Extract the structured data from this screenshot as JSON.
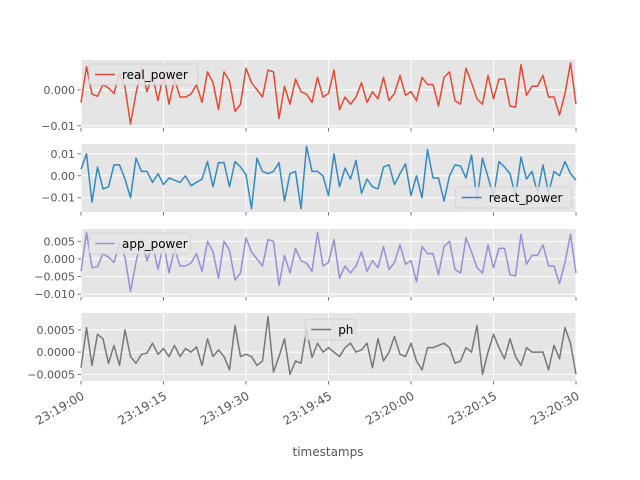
{
  "chart_data": {
    "type": "line",
    "xlabel": "timestamps",
    "x_tick_labels": [
      "23:19:00",
      "23:19:15",
      "23:19:30",
      "23:19:45",
      "23:20:00",
      "23:20:15",
      "23:20:30"
    ],
    "x_range_seconds": [
      0,
      90
    ],
    "n_points": 91,
    "grid": true,
    "shared_x": true,
    "panels": [
      {
        "name": "real_power",
        "color": "#E24A33",
        "legend_loc": "upper left",
        "ylim": [
          -0.0106,
          0.0083
        ],
        "yticks": [
          0.0,
          -0.01
        ],
        "ytick_labels": [
          "0.000",
          "−0.01"
        ],
        "values": [
          -0.0035,
          0.0065,
          -0.0012,
          -0.0018,
          0.0015,
          0.0005,
          -0.001,
          0.0045,
          0.0008,
          -0.0095,
          -0.001,
          0.006,
          -0.0005,
          0.004,
          -0.003,
          0.0045,
          -0.004,
          0.003,
          -0.002,
          -0.002,
          -0.0012,
          0.0015,
          -0.0035,
          0.005,
          0.002,
          -0.0055,
          0.005,
          0.0025,
          -0.006,
          -0.004,
          0.006,
          0.002,
          0.0,
          -0.002,
          0.0055,
          0.005,
          -0.008,
          0.001,
          -0.004,
          0.003,
          -0.0005,
          -0.0012,
          -0.0035,
          0.0035,
          -0.002,
          -0.001,
          0.0055,
          -0.0055,
          -0.002,
          -0.004,
          -0.002,
          0.002,
          -0.0035,
          -0.0005,
          -0.0025,
          0.0035,
          -0.003,
          -0.001,
          0.004,
          -0.0015,
          -0.0005,
          -0.003,
          0.0035,
          0.0015,
          0.0015,
          -0.0045,
          0.0035,
          0.005,
          -0.003,
          -0.004,
          0.006,
          0.002,
          -0.0025,
          -0.004,
          0.004,
          -0.0025,
          0.003,
          0.003,
          -0.0045,
          -0.0048,
          0.007,
          -0.0015,
          0.001,
          0.001,
          0.004,
          -0.002,
          -0.002,
          -0.007,
          -0.001,
          0.0075,
          -0.004
        ]
      },
      {
        "name": "react_power",
        "color": "#348ABD",
        "legend_loc": "lower right",
        "ylim": [
          -0.0165,
          0.0145
        ],
        "yticks": [
          0.01,
          0.0,
          -0.01
        ],
        "ytick_labels": [
          "0.01",
          "0.00",
          "−0.01"
        ],
        "values": [
          0.003,
          0.01,
          -0.012,
          0.004,
          -0.006,
          -0.005,
          0.005,
          0.005,
          -0.0015,
          -0.01,
          0.008,
          0.002,
          0.002,
          -0.003,
          0.001,
          -0.004,
          -0.001,
          -0.002,
          -0.003,
          0.0,
          -0.0045,
          -0.003,
          -0.0015,
          0.0065,
          -0.005,
          0.006,
          0.006,
          -0.005,
          0.0065,
          0.004,
          0.0005,
          -0.015,
          0.008,
          0.002,
          0.001,
          0.002,
          0.006,
          -0.0115,
          0.001,
          0.002,
          -0.015,
          0.0135,
          0.002,
          0.002,
          0.0,
          -0.009,
          0.01,
          -0.005,
          0.0035,
          -0.0015,
          0.007,
          -0.008,
          -0.0015,
          -0.005,
          -0.006,
          0.004,
          0.005,
          -0.004,
          0.001,
          0.0055,
          -0.009,
          0.0,
          -0.01,
          0.012,
          -0.001,
          -0.001,
          -0.0115,
          0.0,
          0.005,
          0.0045,
          -0.001,
          0.0095,
          -0.011,
          0.008,
          -0.0005,
          -0.0095,
          0.0065,
          0.004,
          0.001,
          -0.0095,
          0.0085,
          -0.0015,
          0.002,
          -0.008,
          0.005,
          -0.008,
          0.002,
          0.0,
          0.0065,
          0.001,
          -0.002
        ]
      },
      {
        "name": "app_power",
        "color": "#988ED5",
        "legend_loc": "upper left",
        "ylim": [
          -0.0108,
          0.0085
        ],
        "yticks": [
          0.005,
          0.0,
          -0.005,
          -0.01
        ],
        "ytick_labels": [
          "0.005",
          "0.000",
          "−0.005",
          "−0.010"
        ],
        "values": [
          -0.0035,
          0.0075,
          -0.0025,
          -0.0022,
          0.0015,
          0.0005,
          -0.001,
          0.0045,
          0.0005,
          -0.0092,
          -0.001,
          0.006,
          -0.0005,
          0.004,
          -0.003,
          0.0045,
          -0.004,
          0.003,
          -0.002,
          -0.002,
          -0.0012,
          0.0015,
          -0.0035,
          0.005,
          0.002,
          -0.0055,
          0.005,
          0.0025,
          -0.006,
          -0.004,
          0.006,
          0.002,
          0.0,
          -0.002,
          0.0055,
          0.005,
          -0.0075,
          0.001,
          -0.004,
          0.003,
          -0.0005,
          -0.0012,
          -0.0035,
          0.0075,
          -0.002,
          -0.001,
          0.0055,
          -0.0055,
          -0.002,
          -0.004,
          -0.002,
          0.002,
          -0.0035,
          -0.0005,
          -0.0025,
          0.0035,
          -0.003,
          -0.001,
          0.004,
          -0.0015,
          -0.0005,
          -0.0065,
          0.0035,
          0.0015,
          0.0015,
          -0.0045,
          0.0035,
          0.005,
          -0.003,
          -0.004,
          0.006,
          0.002,
          -0.0025,
          -0.004,
          0.004,
          -0.0025,
          0.003,
          0.003,
          -0.0045,
          -0.0048,
          0.007,
          -0.0015,
          0.001,
          0.001,
          0.004,
          -0.002,
          -0.002,
          -0.007,
          -0.001,
          0.007,
          -0.004
        ]
      },
      {
        "name": "ph",
        "color": "#777777",
        "legend_loc": "upper center",
        "ylim": [
          -0.00065,
          0.00088
        ],
        "yticks": [
          0.0005,
          0.0,
          -0.0005
        ],
        "ytick_labels": [
          "0.0005",
          "0.0000",
          "−0.0005"
        ],
        "values": [
          -0.00035,
          0.00055,
          -0.0003,
          0.0004,
          0.0003,
          -0.00025,
          0.00015,
          -0.0003,
          0.0005,
          -0.0001,
          -0.00025,
          -5e-05,
          -2e-05,
          0.0002,
          -5e-05,
          8e-05,
          -0.0001,
          0.00015,
          -0.0001,
          8e-05,
          0.0,
          0.00012,
          -0.0003,
          0.0003,
          -0.0001,
          5e-05,
          -0.0001,
          -0.0004,
          0.0006,
          -0.0001,
          -5e-05,
          -0.0001,
          -0.0003,
          -0.0002,
          0.0008,
          -0.00045,
          -0.0001,
          0.0003,
          -0.0005,
          -0.0002,
          -0.00025,
          0.0005,
          -0.00012,
          0.0002,
          0.0,
          0.0001,
          0.0,
          -0.0001,
          0.0001,
          0.0002,
          0.0,
          5e-05,
          0.0002,
          -0.00035,
          0.0003,
          -0.0002,
          0.0,
          0.00035,
          -5e-05,
          -0.0001,
          0.0002,
          -0.0002,
          -0.0004,
          0.0001,
          0.0001,
          0.00015,
          0.0002,
          0.0001,
          -0.00025,
          -0.0002,
          0.0001,
          0.0,
          0.0006,
          -0.0005,
          0.0,
          0.0004,
          0.0001,
          -0.00015,
          0.0003,
          -0.0001,
          -0.0003,
          0.0001,
          0.0,
          0.0,
          0.0,
          -0.0004,
          0.00015,
          -0.00015,
          0.00055,
          0.0002,
          -0.0005
        ]
      }
    ]
  }
}
